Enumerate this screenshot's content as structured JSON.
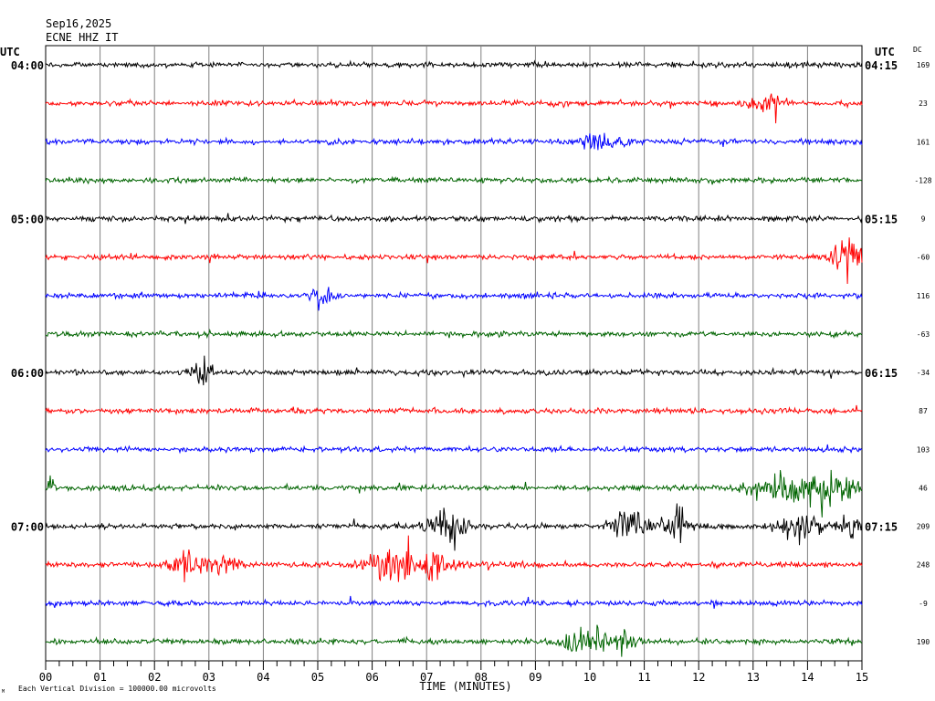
{
  "header": {
    "date": "Sep16,2025",
    "station": "ECNE HHZ IT"
  },
  "left_axis": {
    "label": "UTC",
    "hour_labels": [
      "04:00",
      "05:00",
      "06:00",
      "07:00"
    ]
  },
  "right_axis": {
    "label": "UTC",
    "hour_labels": [
      "04:15",
      "05:15",
      "06:15",
      "07:15"
    ],
    "dc_label": "DC"
  },
  "footer": {
    "scale_note": "Each Vertical Division = 100000.00 microvolts",
    "corner_mark": "M"
  },
  "chart_data": {
    "type": "line",
    "xlabel": "TIME (MINUTES)",
    "xlim": [
      0,
      15
    ],
    "x_ticks": [
      "00",
      "01",
      "02",
      "03",
      "04",
      "05",
      "06",
      "07",
      "08",
      "09",
      "10",
      "11",
      "12",
      "13",
      "14",
      "15"
    ],
    "grid": true,
    "trace_colors": [
      "#000000",
      "#ff0000",
      "#0000ff",
      "#006400"
    ],
    "series": [
      {
        "start": "04:00",
        "dc": "169",
        "bursts": []
      },
      {
        "start": "04:15",
        "dc": "23",
        "bursts": [
          [
            13.3,
            0.3,
            1.8
          ]
        ]
      },
      {
        "start": "04:30",
        "dc": "161",
        "bursts": [
          [
            10.2,
            0.4,
            1.6
          ]
        ]
      },
      {
        "start": "04:45",
        "dc": "-128",
        "bursts": []
      },
      {
        "start": "05:00",
        "dc": "9",
        "bursts": []
      },
      {
        "start": "05:15",
        "dc": "-60",
        "bursts": [
          [
            14.7,
            0.3,
            2.8
          ]
        ]
      },
      {
        "start": "05:30",
        "dc": "116",
        "bursts": [
          [
            5.1,
            0.2,
            1.8
          ]
        ]
      },
      {
        "start": "05:45",
        "dc": "-63",
        "bursts": []
      },
      {
        "start": "06:00",
        "dc": "-34",
        "bursts": [
          [
            2.9,
            0.2,
            2.2
          ]
        ]
      },
      {
        "start": "06:15",
        "dc": "87",
        "bursts": []
      },
      {
        "start": "06:30",
        "dc": "103",
        "bursts": []
      },
      {
        "start": "06:45",
        "dc": "46",
        "bursts": [
          [
            0.05,
            0.1,
            2.5
          ],
          [
            13.5,
            0.6,
            2.5
          ],
          [
            14.4,
            0.5,
            3.2
          ]
        ]
      },
      {
        "start": "07:00",
        "dc": "209",
        "bursts": [
          [
            7.4,
            0.35,
            3.4
          ],
          [
            10.7,
            0.3,
            3.0
          ],
          [
            11.6,
            0.25,
            3.0
          ],
          [
            13.8,
            0.35,
            2.6
          ],
          [
            14.8,
            0.2,
            2.6
          ]
        ]
      },
      {
        "start": "07:15",
        "dc": "248",
        "bursts": [
          [
            2.5,
            0.2,
            3.0
          ],
          [
            3.2,
            0.3,
            2.8
          ],
          [
            6.3,
            0.4,
            3.4
          ],
          [
            7.1,
            0.4,
            2.6
          ]
        ]
      },
      {
        "start": "07:30",
        "dc": "-9",
        "bursts": []
      },
      {
        "start": "07:45",
        "dc": "190",
        "bursts": [
          [
            9.9,
            0.35,
            3.0
          ],
          [
            10.6,
            0.25,
            2.6
          ]
        ]
      }
    ]
  }
}
